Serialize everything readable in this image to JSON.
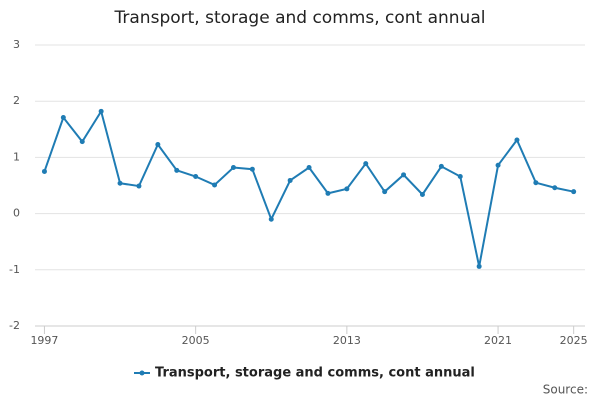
{
  "chart_data": {
    "type": "line",
    "title": "Transport, storage and comms, cont annual",
    "x": [
      1997,
      1998,
      1999,
      2000,
      2001,
      2002,
      2003,
      2004,
      2005,
      2006,
      2007,
      2008,
      2009,
      2010,
      2011,
      2012,
      2013,
      2014,
      2015,
      2016,
      2017,
      2018,
      2019,
      2020,
      2021,
      2022,
      2023,
      2024,
      2025
    ],
    "series": [
      {
        "name": "Transport, storage and comms, cont annual",
        "color": "#1f7cb4",
        "values": [
          0.75,
          1.71,
          1.28,
          1.82,
          0.54,
          0.49,
          1.23,
          0.77,
          0.66,
          0.51,
          0.82,
          0.79,
          -0.1,
          0.59,
          0.82,
          0.36,
          0.44,
          0.89,
          0.39,
          0.69,
          0.34,
          0.84,
          0.66,
          -0.94,
          0.86,
          1.31,
          0.55,
          0.46,
          0.39
        ]
      }
    ],
    "xlim": [
      1996.5,
      2025.6
    ],
    "xticks": [
      1997,
      2005,
      2013,
      2021,
      2025
    ],
    "ylim": [
      -2,
      3
    ],
    "yticks": [
      -2,
      -1,
      0,
      1,
      2,
      3
    ],
    "grid": true,
    "legend": "bottom",
    "source_label": "Source:"
  }
}
